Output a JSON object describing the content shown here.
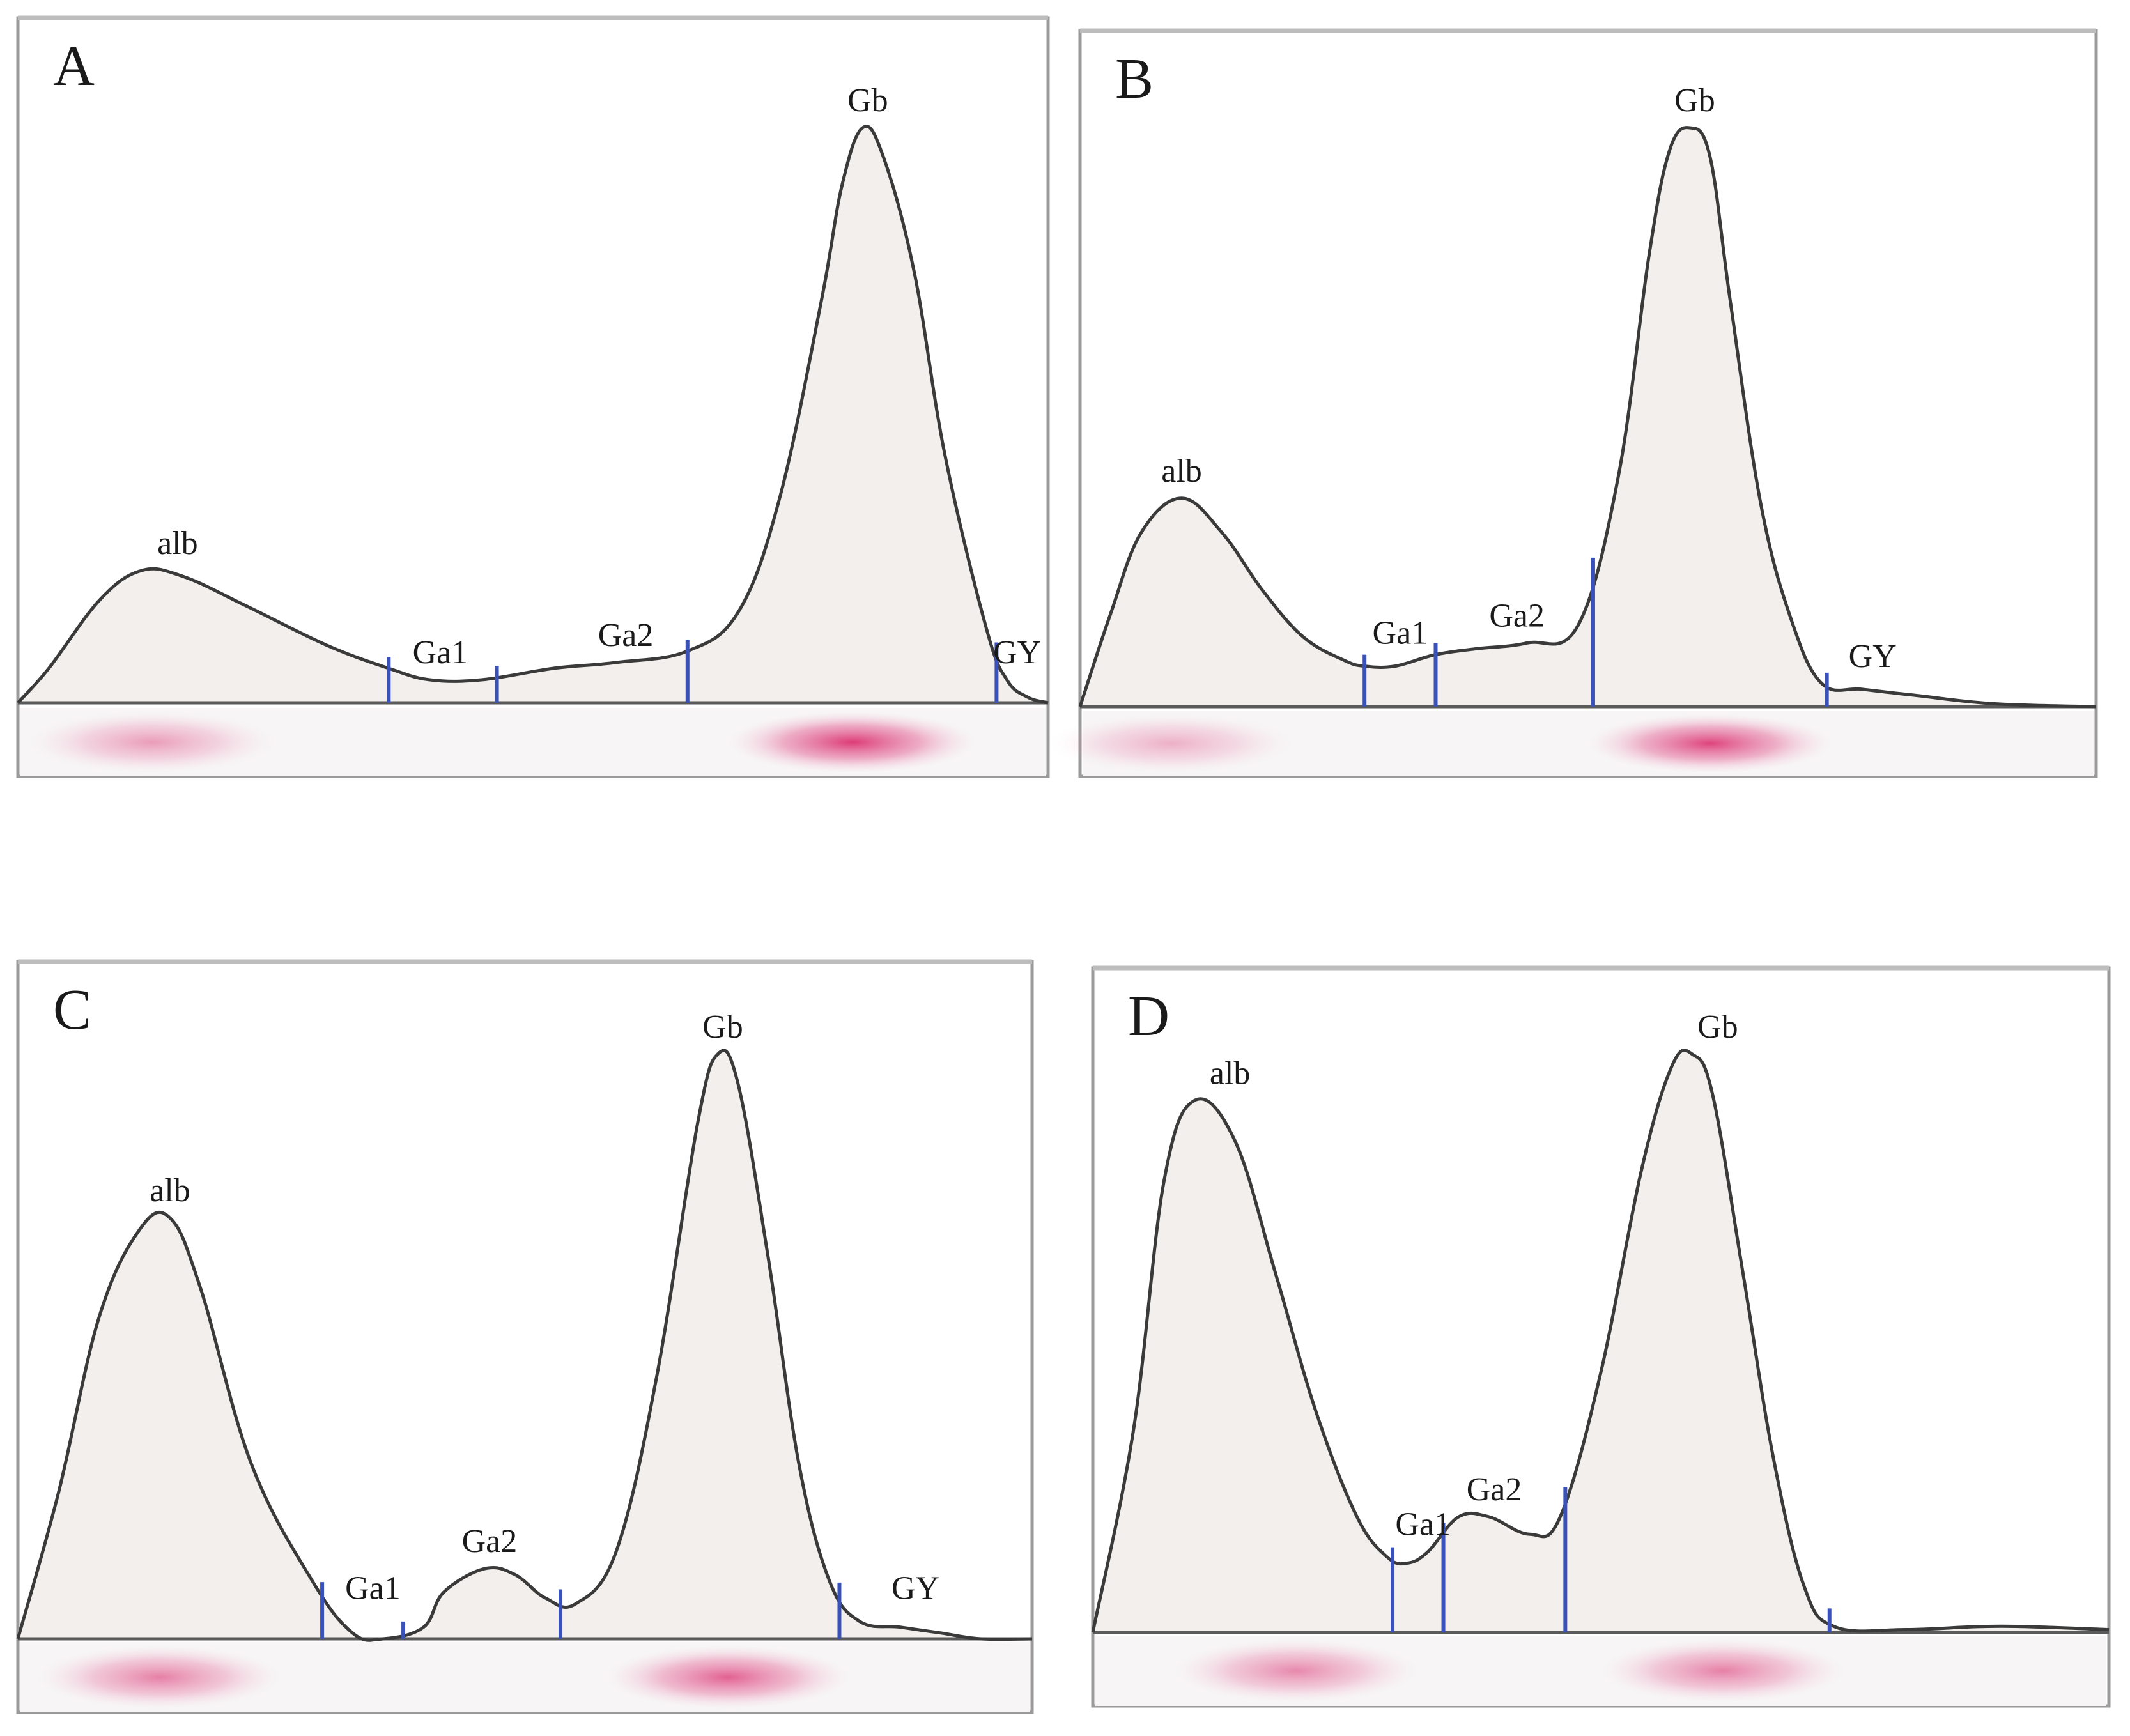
{
  "chart_data": [
    {
      "type": "area",
      "panel": "A",
      "x_range": [
        0,
        100
      ],
      "y_range": [
        0,
        100
      ],
      "grid": false,
      "curve": [
        [
          0,
          0
        ],
        [
          3,
          6
        ],
        [
          8,
          18
        ],
        [
          12,
          23
        ],
        [
          16,
          22
        ],
        [
          22,
          17
        ],
        [
          30,
          10
        ],
        [
          36,
          6
        ],
        [
          40,
          4
        ],
        [
          45,
          4
        ],
        [
          52,
          6
        ],
        [
          58,
          7
        ],
        [
          65,
          9
        ],
        [
          70,
          16
        ],
        [
          74,
          36
        ],
        [
          78,
          70
        ],
        [
          80,
          90
        ],
        [
          82,
          100
        ],
        [
          84,
          95
        ],
        [
          87,
          75
        ],
        [
          90,
          43
        ],
        [
          94,
          13
        ],
        [
          96,
          4
        ],
        [
          98,
          1
        ],
        [
          100,
          0
        ]
      ],
      "dividers": [
        36,
        46.5,
        65,
        95
      ],
      "labels": [
        {
          "text": "alb",
          "x": 15.5,
          "y": 23
        },
        {
          "text": "Ga1",
          "x": 41,
          "y": 4
        },
        {
          "text": "Ga2",
          "x": 59,
          "y": 7
        },
        {
          "text": "Gb",
          "x": 82.5,
          "y": 100
        },
        {
          "text": "GY",
          "x": 97,
          "y": 4
        }
      ],
      "bands": [
        {
          "x": 13,
          "intensity": 0.45
        },
        {
          "x": 81,
          "intensity": 0.95
        }
      ]
    },
    {
      "type": "area",
      "panel": "B",
      "x_range": [
        0,
        100
      ],
      "y_range": [
        0,
        100
      ],
      "grid": false,
      "curve": [
        [
          0,
          0
        ],
        [
          3,
          16
        ],
        [
          6,
          30
        ],
        [
          10,
          36
        ],
        [
          14,
          30
        ],
        [
          18,
          20
        ],
        [
          22,
          12
        ],
        [
          26,
          8
        ],
        [
          28,
          7
        ],
        [
          31,
          7
        ],
        [
          35,
          9
        ],
        [
          39,
          10
        ],
        [
          44,
          11
        ],
        [
          49,
          14
        ],
        [
          53,
          40
        ],
        [
          56,
          78
        ],
        [
          58,
          96
        ],
        [
          60,
          100
        ],
        [
          62,
          95
        ],
        [
          64,
          70
        ],
        [
          67,
          35
        ],
        [
          70,
          15
        ],
        [
          73,
          4
        ],
        [
          77,
          3
        ],
        [
          82,
          2
        ],
        [
          90,
          0.5
        ],
        [
          100,
          0
        ]
      ],
      "dividers": [
        28,
        35,
        50.5,
        73.5
      ],
      "labels": [
        {
          "text": "alb",
          "x": 10,
          "y": 36
        },
        {
          "text": "Ga1",
          "x": 31.5,
          "y": 8
        },
        {
          "text": "Ga2",
          "x": 43,
          "y": 11
        },
        {
          "text": "Gb",
          "x": 60.5,
          "y": 100
        },
        {
          "text": "GY",
          "x": 78,
          "y": 4
        }
      ],
      "bands": [
        {
          "x": 9,
          "intensity": 0.35
        },
        {
          "x": 62,
          "intensity": 0.9
        }
      ]
    },
    {
      "type": "area",
      "panel": "C",
      "x_range": [
        0,
        100
      ],
      "y_range": [
        0,
        100
      ],
      "grid": false,
      "curve": [
        [
          0,
          0
        ],
        [
          4,
          25
        ],
        [
          8,
          55
        ],
        [
          12,
          70
        ],
        [
          15,
          72
        ],
        [
          18,
          60
        ],
        [
          23,
          30
        ],
        [
          29,
          10
        ],
        [
          33,
          1
        ],
        [
          36,
          0
        ],
        [
          40,
          2
        ],
        [
          42,
          8
        ],
        [
          46,
          12
        ],
        [
          49,
          11
        ],
        [
          52,
          7
        ],
        [
          55,
          6
        ],
        [
          59,
          15
        ],
        [
          63,
          45
        ],
        [
          67,
          88
        ],
        [
          69,
          100
        ],
        [
          71,
          95
        ],
        [
          74,
          65
        ],
        [
          77,
          30
        ],
        [
          80,
          10
        ],
        [
          83,
          3
        ],
        [
          87,
          2
        ],
        [
          91,
          1
        ],
        [
          95,
          0
        ],
        [
          100,
          0
        ]
      ],
      "dividers": [
        30,
        38,
        53.5,
        81
      ],
      "labels": [
        {
          "text": "alb",
          "x": 15,
          "y": 72
        },
        {
          "text": "Ga1",
          "x": 35,
          "y": 4
        },
        {
          "text": "Ga2",
          "x": 46.5,
          "y": 12
        },
        {
          "text": "Gb",
          "x": 69.5,
          "y": 100
        },
        {
          "text": "GY",
          "x": 88.5,
          "y": 4
        }
      ],
      "bands": [
        {
          "x": 14,
          "intensity": 0.6
        },
        {
          "x": 70,
          "intensity": 0.75
        }
      ]
    },
    {
      "type": "area",
      "panel": "D",
      "x_range": [
        0,
        100
      ],
      "y_range": [
        0,
        100
      ],
      "grid": false,
      "curve": [
        [
          0,
          0
        ],
        [
          4,
          35
        ],
        [
          7,
          78
        ],
        [
          10,
          92
        ],
        [
          14,
          85
        ],
        [
          18,
          62
        ],
        [
          22,
          38
        ],
        [
          26,
          20
        ],
        [
          29,
          13
        ],
        [
          31,
          12
        ],
        [
          33,
          14
        ],
        [
          36,
          20
        ],
        [
          39,
          20
        ],
        [
          43,
          17
        ],
        [
          46,
          20
        ],
        [
          50,
          45
        ],
        [
          54,
          80
        ],
        [
          57,
          98
        ],
        [
          59,
          100
        ],
        [
          61,
          93
        ],
        [
          64,
          62
        ],
        [
          67,
          30
        ],
        [
          70,
          8
        ],
        [
          73,
          1
        ],
        [
          80,
          0.5
        ],
        [
          87,
          1
        ],
        [
          92,
          1
        ],
        [
          100,
          0.5
        ]
      ],
      "dividers": [
        29.5,
        34.5,
        46.5,
        72.5
      ],
      "labels": [
        {
          "text": "alb",
          "x": 13.5,
          "y": 92
        },
        {
          "text": "Ga1",
          "x": 32.5,
          "y": 14
        },
        {
          "text": "Ga2",
          "x": 39.5,
          "y": 20
        },
        {
          "text": "Gb",
          "x": 61.5,
          "y": 100
        }
      ],
      "bands": [
        {
          "x": 20,
          "intensity": 0.55
        },
        {
          "x": 62,
          "intensity": 0.6
        }
      ]
    }
  ]
}
